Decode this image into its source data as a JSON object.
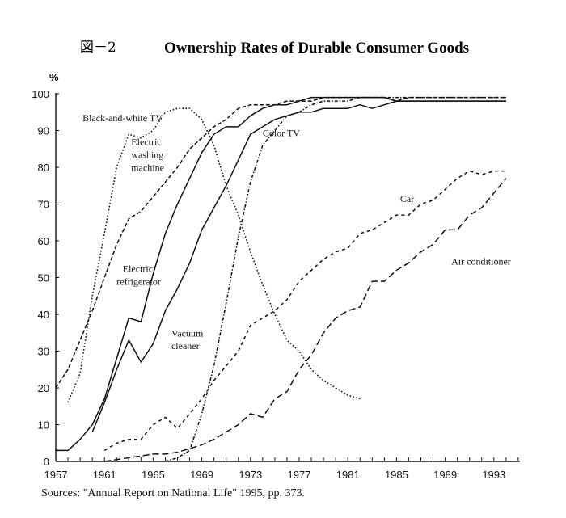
{
  "chart_data": {
    "type": "line",
    "figure_label": "図－2",
    "title": "Ownership Rates of Durable Consumer Goods",
    "ylabel": "%",
    "xlabel": "",
    "xlim": [
      1957,
      1995
    ],
    "ylim": [
      0,
      100
    ],
    "x_ticks": [
      1957,
      1961,
      1965,
      1969,
      1973,
      1977,
      1981,
      1985,
      1989,
      1993
    ],
    "y_ticks": [
      0,
      10,
      20,
      30,
      40,
      50,
      60,
      70,
      80,
      90,
      100
    ],
    "grid": false,
    "legend": "inline-annotations",
    "series": [
      {
        "name": "Black-and-white TV",
        "style": "dotted",
        "points": [
          [
            1958,
            16
          ],
          [
            1959,
            24
          ],
          [
            1960,
            45
          ],
          [
            1961,
            62
          ],
          [
            1962,
            80
          ],
          [
            1963,
            89
          ],
          [
            1964,
            88
          ],
          [
            1965,
            90
          ],
          [
            1966,
            95
          ],
          [
            1967,
            96
          ],
          [
            1968,
            96
          ],
          [
            1969,
            93
          ],
          [
            1970,
            86
          ],
          [
            1971,
            75
          ],
          [
            1972,
            67
          ],
          [
            1973,
            57
          ],
          [
            1974,
            48
          ],
          [
            1975,
            40
          ],
          [
            1976,
            33
          ],
          [
            1977,
            30
          ],
          [
            1978,
            25
          ],
          [
            1979,
            22
          ],
          [
            1980,
            20
          ],
          [
            1981,
            18
          ],
          [
            1982,
            17
          ]
        ]
      },
      {
        "name": "Electric washing machine",
        "style": "dashed",
        "points": [
          [
            1957,
            20
          ],
          [
            1958,
            25
          ],
          [
            1959,
            33
          ],
          [
            1960,
            41
          ],
          [
            1961,
            50
          ],
          [
            1962,
            59
          ],
          [
            1963,
            66
          ],
          [
            1964,
            68
          ],
          [
            1965,
            72
          ],
          [
            1966,
            76
          ],
          [
            1967,
            80
          ],
          [
            1968,
            85
          ],
          [
            1969,
            88
          ],
          [
            1970,
            91
          ],
          [
            1971,
            93
          ],
          [
            1972,
            96
          ],
          [
            1973,
            97
          ],
          [
            1974,
            97
          ],
          [
            1975,
            97
          ],
          [
            1976,
            98
          ],
          [
            1977,
            98
          ],
          [
            1978,
            98
          ],
          [
            1979,
            99
          ],
          [
            1980,
            99
          ],
          [
            1981,
            99
          ],
          [
            1982,
            99
          ],
          [
            1983,
            99
          ],
          [
            1984,
            99
          ],
          [
            1985,
            98
          ],
          [
            1986,
            99
          ],
          [
            1987,
            99
          ],
          [
            1988,
            99
          ],
          [
            1989,
            99
          ],
          [
            1990,
            99
          ],
          [
            1991,
            99
          ],
          [
            1992,
            99
          ],
          [
            1993,
            99
          ],
          [
            1994,
            99
          ]
        ]
      },
      {
        "name": "Electric refrigerator",
        "style": "solid",
        "points": [
          [
            1957,
            3
          ],
          [
            1958,
            3
          ],
          [
            1959,
            6
          ],
          [
            1960,
            10
          ],
          [
            1961,
            17
          ],
          [
            1962,
            28
          ],
          [
            1963,
            39
          ],
          [
            1964,
            38
          ],
          [
            1965,
            51
          ],
          [
            1966,
            62
          ],
          [
            1967,
            70
          ],
          [
            1968,
            77
          ],
          [
            1969,
            84
          ],
          [
            1970,
            89
          ],
          [
            1971,
            91
          ],
          [
            1972,
            91
          ],
          [
            1973,
            94
          ],
          [
            1974,
            96
          ],
          [
            1975,
            97
          ],
          [
            1976,
            97
          ],
          [
            1977,
            98
          ],
          [
            1978,
            99
          ],
          [
            1979,
            99
          ],
          [
            1980,
            99
          ],
          [
            1981,
            99
          ],
          [
            1982,
            99
          ],
          [
            1983,
            99
          ],
          [
            1984,
            99
          ],
          [
            1985,
            98
          ],
          [
            1986,
            98
          ],
          [
            1987,
            98
          ],
          [
            1988,
            98
          ],
          [
            1989,
            98
          ],
          [
            1990,
            98
          ],
          [
            1991,
            98
          ],
          [
            1992,
            98
          ],
          [
            1993,
            98
          ],
          [
            1994,
            98
          ]
        ]
      },
      {
        "name": "Vacuum cleaner",
        "style": "solid",
        "points": [
          [
            1960,
            8
          ],
          [
            1961,
            16
          ],
          [
            1962,
            25
          ],
          [
            1963,
            33
          ],
          [
            1964,
            27
          ],
          [
            1965,
            32
          ],
          [
            1966,
            41
          ],
          [
            1967,
            47
          ],
          [
            1968,
            54
          ],
          [
            1969,
            63
          ],
          [
            1970,
            69
          ],
          [
            1971,
            75
          ],
          [
            1972,
            82
          ],
          [
            1973,
            89
          ],
          [
            1974,
            91
          ],
          [
            1975,
            93
          ],
          [
            1976,
            94
          ],
          [
            1977,
            95
          ],
          [
            1978,
            95
          ],
          [
            1979,
            96
          ],
          [
            1980,
            96
          ],
          [
            1981,
            96
          ],
          [
            1982,
            97
          ],
          [
            1983,
            96
          ],
          [
            1984,
            97
          ],
          [
            1985,
            98
          ],
          [
            1986,
            98
          ],
          [
            1987,
            98
          ],
          [
            1988,
            98
          ],
          [
            1989,
            98
          ],
          [
            1990,
            98
          ],
          [
            1991,
            98
          ],
          [
            1992,
            98
          ],
          [
            1993,
            98
          ],
          [
            1994,
            98
          ]
        ]
      },
      {
        "name": "Color TV",
        "style": "dash-dot",
        "points": [
          [
            1966,
            0
          ],
          [
            1967,
            1
          ],
          [
            1968,
            3
          ],
          [
            1969,
            13
          ],
          [
            1970,
            26
          ],
          [
            1971,
            43
          ],
          [
            1972,
            61
          ],
          [
            1973,
            76
          ],
          [
            1974,
            86
          ],
          [
            1975,
            90
          ],
          [
            1976,
            94
          ],
          [
            1977,
            95
          ],
          [
            1978,
            97
          ],
          [
            1979,
            98
          ],
          [
            1980,
            98
          ],
          [
            1981,
            98
          ],
          [
            1982,
            99
          ],
          [
            1983,
            99
          ],
          [
            1984,
            99
          ],
          [
            1985,
            99
          ],
          [
            1986,
            99
          ],
          [
            1987,
            99
          ],
          [
            1988,
            99
          ],
          [
            1989,
            99
          ],
          [
            1990,
            99
          ],
          [
            1991,
            99
          ],
          [
            1992,
            99
          ],
          [
            1993,
            99
          ],
          [
            1994,
            99
          ]
        ]
      },
      {
        "name": "Car",
        "style": "short-dashed",
        "points": [
          [
            1961,
            3
          ],
          [
            1962,
            5
          ],
          [
            1963,
            6
          ],
          [
            1964,
            6
          ],
          [
            1965,
            10
          ],
          [
            1966,
            12
          ],
          [
            1967,
            9
          ],
          [
            1968,
            13
          ],
          [
            1969,
            17
          ],
          [
            1970,
            22
          ],
          [
            1971,
            26
          ],
          [
            1972,
            30
          ],
          [
            1973,
            37
          ],
          [
            1974,
            39
          ],
          [
            1975,
            41
          ],
          [
            1976,
            44
          ],
          [
            1977,
            49
          ],
          [
            1978,
            52
          ],
          [
            1979,
            55
          ],
          [
            1980,
            57
          ],
          [
            1981,
            58
          ],
          [
            1982,
            62
          ],
          [
            1983,
            63
          ],
          [
            1984,
            65
          ],
          [
            1985,
            67
          ],
          [
            1986,
            67
          ],
          [
            1987,
            70
          ],
          [
            1988,
            71
          ],
          [
            1989,
            74
          ],
          [
            1990,
            77
          ],
          [
            1991,
            79
          ],
          [
            1992,
            78
          ],
          [
            1993,
            79
          ],
          [
            1994,
            79
          ]
        ]
      },
      {
        "name": "Air conditioner",
        "style": "long-dashed",
        "points": [
          [
            1961,
            0
          ],
          [
            1962,
            0.5
          ],
          [
            1963,
            1
          ],
          [
            1964,
            1.5
          ],
          [
            1965,
            2
          ],
          [
            1966,
            2
          ],
          [
            1967,
            2.5
          ],
          [
            1968,
            3.5
          ],
          [
            1969,
            4.5
          ],
          [
            1970,
            6
          ],
          [
            1971,
            8
          ],
          [
            1972,
            10
          ],
          [
            1973,
            13
          ],
          [
            1974,
            12
          ],
          [
            1975,
            17
          ],
          [
            1976,
            19
          ],
          [
            1977,
            25
          ],
          [
            1978,
            29
          ],
          [
            1979,
            35
          ],
          [
            1980,
            39
          ],
          [
            1981,
            41
          ],
          [
            1982,
            42
          ],
          [
            1983,
            49
          ],
          [
            1984,
            49
          ],
          [
            1985,
            52
          ],
          [
            1986,
            54
          ],
          [
            1987,
            57
          ],
          [
            1988,
            59
          ],
          [
            1989,
            63
          ],
          [
            1990,
            63
          ],
          [
            1991,
            67
          ],
          [
            1992,
            69
          ],
          [
            1993,
            73
          ],
          [
            1994,
            77
          ]
        ]
      }
    ],
    "annotations": [
      {
        "text": "Black-and-white TV",
        "x": 1959.2,
        "y": 92.5
      },
      {
        "text": "Electric",
        "x": 1963.2,
        "y": 86
      },
      {
        "text": "washing",
        "x": 1963.2,
        "y": 82.5
      },
      {
        "text": "machine",
        "x": 1963.2,
        "y": 79
      },
      {
        "text": "Color TV",
        "x": 1974.0,
        "y": 88.5
      },
      {
        "text": "Car",
        "x": 1985.3,
        "y": 70.5
      },
      {
        "text": "Air conditioner",
        "x": 1989.5,
        "y": 53.5
      },
      {
        "text": "Electric",
        "x": 1962.5,
        "y": 51.5
      },
      {
        "text": "refrigerator",
        "x": 1962.0,
        "y": 48
      },
      {
        "text": "Vacuum",
        "x": 1966.5,
        "y": 34
      },
      {
        "text": "cleaner",
        "x": 1966.5,
        "y": 30.5
      }
    ]
  },
  "source_text": "Sources:    \"Annual Report on National Life\" 1995, pp. 373."
}
